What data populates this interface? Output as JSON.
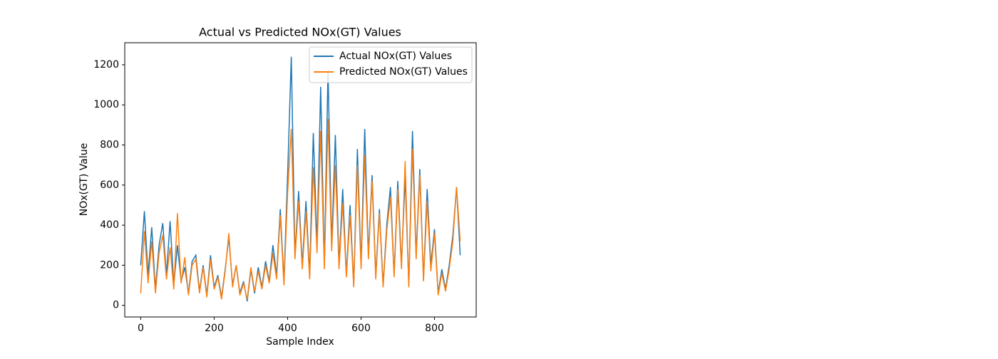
{
  "chart_data": {
    "type": "line",
    "title": "Actual vs Predicted NOx(GT) Values",
    "x_label": "Sample Index",
    "y_label": "NOx(GT) Value",
    "x": [
      0,
      10,
      20,
      30,
      40,
      50,
      60,
      70,
      80,
      90,
      100,
      110,
      120,
      130,
      140,
      150,
      160,
      170,
      180,
      190,
      200,
      210,
      220,
      230,
      240,
      250,
      260,
      270,
      280,
      290,
      300,
      310,
      320,
      330,
      340,
      350,
      360,
      370,
      380,
      390,
      400,
      410,
      420,
      430,
      440,
      450,
      460,
      470,
      480,
      490,
      500,
      510,
      520,
      530,
      540,
      550,
      560,
      570,
      580,
      590,
      600,
      610,
      620,
      630,
      640,
      650,
      660,
      670,
      680,
      690,
      700,
      710,
      720,
      730,
      740,
      750,
      760,
      770,
      780,
      790,
      800,
      810,
      820,
      830,
      840,
      850,
      860,
      870
    ],
    "series": [
      {
        "name": "Actual NOx(GT) Values",
        "color": "#1f77b4",
        "values": [
          200,
          470,
          150,
          390,
          80,
          300,
          410,
          150,
          420,
          100,
          300,
          120,
          190,
          60,
          220,
          250,
          70,
          200,
          50,
          250,
          90,
          150,
          40,
          180,
          340,
          100,
          200,
          60,
          120,
          20,
          180,
          60,
          190,
          90,
          220,
          120,
          300,
          150,
          480,
          120,
          650,
          1240,
          250,
          570,
          200,
          520,
          150,
          860,
          300,
          1090,
          200,
          1170,
          300,
          850,
          200,
          580,
          150,
          500,
          100,
          780,
          200,
          880,
          250,
          650,
          150,
          480,
          100,
          400,
          590,
          150,
          620,
          200,
          640,
          100,
          870,
          250,
          680,
          130,
          580,
          200,
          380,
          60,
          180,
          80,
          200,
          350,
          590,
          250
        ]
      },
      {
        "name": "Predicted NOx(GT) Values",
        "color": "#ff7f0e",
        "values": [
          60,
          370,
          110,
          320,
          60,
          260,
          350,
          130,
          290,
          80,
          460,
          110,
          240,
          50,
          200,
          230,
          60,
          190,
          40,
          230,
          80,
          140,
          30,
          170,
          360,
          90,
          200,
          50,
          110,
          30,
          190,
          70,
          170,
          80,
          200,
          110,
          260,
          130,
          450,
          100,
          560,
          880,
          230,
          520,
          180,
          470,
          130,
          690,
          260,
          870,
          180,
          930,
          270,
          700,
          180,
          510,
          140,
          450,
          90,
          700,
          180,
          750,
          230,
          620,
          130,
          460,
          90,
          370,
          540,
          140,
          580,
          180,
          720,
          90,
          780,
          230,
          650,
          120,
          520,
          170,
          360,
          50,
          160,
          70,
          180,
          320,
          590,
          320
        ]
      }
    ],
    "xlim": [
      -43.5,
      913.5
    ],
    "xticks": [
      0,
      200,
      400,
      600,
      800
    ],
    "ylim": [
      -58,
      1310
    ],
    "yticks": [
      0,
      200,
      400,
      600,
      800,
      1000,
      1200
    ],
    "legend": "upper right",
    "grid": false
  }
}
